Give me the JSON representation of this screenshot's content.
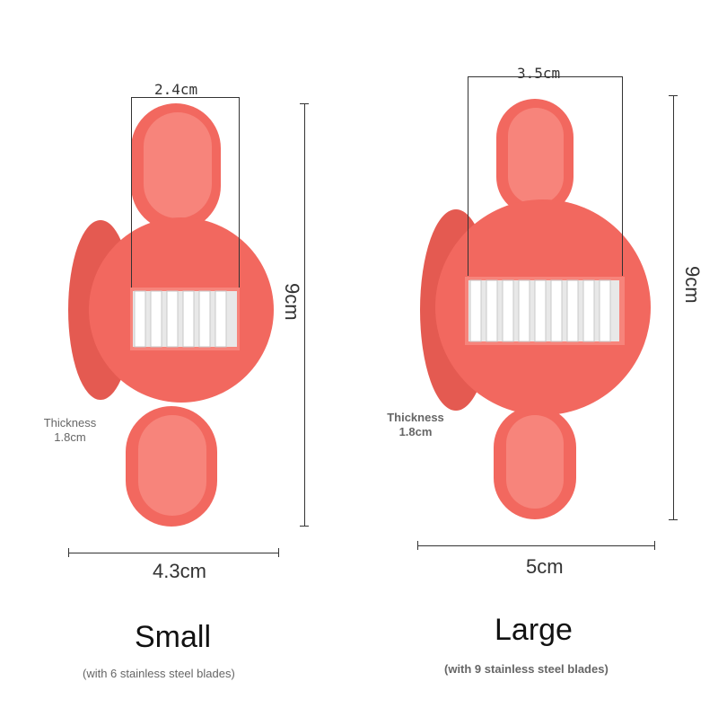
{
  "small": {
    "blade_width": "2.4cm",
    "height": "9cm",
    "width": "4.3cm",
    "thickness_line1": "Thickness",
    "thickness_line2": "1.8cm",
    "name": "Small",
    "blades_note": "(with 6 stainless steel blades)"
  },
  "large": {
    "blade_width": "3.5cm",
    "height": "9cm",
    "width": "5cm",
    "thickness_line1": "Thickness",
    "thickness_line2": "1.8cm",
    "name": "Large",
    "blades_note": "(with 9 stainless steel blades)"
  },
  "colors": {
    "body": "#f2685f",
    "body_dark": "#e45a51",
    "ring_inner": "#f7847b",
    "blade": "#e8e8e8"
  }
}
